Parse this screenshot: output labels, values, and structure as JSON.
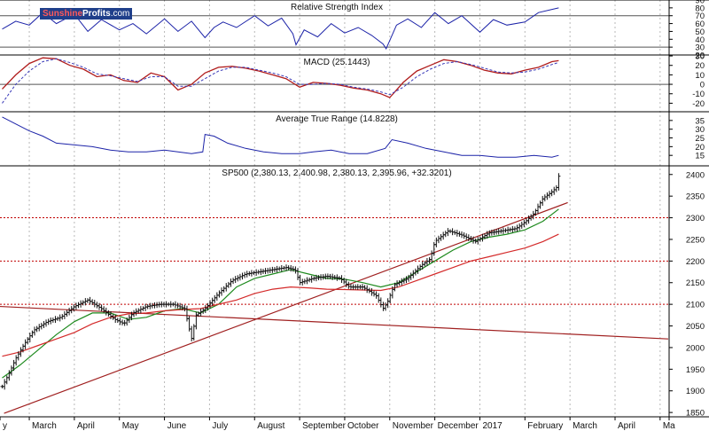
{
  "brand": {
    "part1": "Sunshine",
    "part2": "Profits",
    "part3": ".com"
  },
  "x_axis": {
    "months": [
      {
        "label": "y",
        "m": 1.35
      },
      {
        "label": "March",
        "m": 2
      },
      {
        "label": "April",
        "m": 3
      },
      {
        "label": "May",
        "m": 4
      },
      {
        "label": "June",
        "m": 5
      },
      {
        "label": "July",
        "m": 6
      },
      {
        "label": "August",
        "m": 7
      },
      {
        "label": "September",
        "m": 8
      },
      {
        "label": "October",
        "m": 9
      },
      {
        "label": "November",
        "m": 10
      },
      {
        "label": "December",
        "m": 11
      },
      {
        "label": "2017",
        "m": 12
      },
      {
        "label": "February",
        "m": 13
      },
      {
        "label": "March",
        "m": 14
      },
      {
        "label": "April",
        "m": 15
      },
      {
        "label": "Ma",
        "m": 16
      }
    ]
  },
  "chart_data": [
    {
      "type": "line",
      "title": "Relative Strength Index",
      "ylim": [
        20,
        90
      ],
      "yticks": [
        20,
        30,
        40,
        50,
        60,
        70,
        80,
        90
      ],
      "reference_lines": [
        30,
        70
      ],
      "x": [
        1.4,
        1.7,
        2.0,
        2.3,
        2.6,
        3.0,
        3.3,
        3.6,
        4.0,
        4.3,
        4.6,
        5.0,
        5.3,
        5.6,
        5.9,
        6.1,
        6.3,
        6.6,
        7.0,
        7.3,
        7.6,
        7.85,
        7.92,
        8.1,
        8.4,
        8.7,
        9.0,
        9.3,
        9.6,
        9.85,
        9.92,
        10.15,
        10.4,
        10.7,
        11.0,
        11.3,
        11.6,
        12.0,
        12.3,
        12.6,
        13.0,
        13.3,
        13.6,
        13.75
      ],
      "values": [
        53,
        63,
        58,
        74,
        60,
        72,
        50,
        65,
        52,
        60,
        47,
        66,
        50,
        63,
        42,
        55,
        62,
        55,
        70,
        57,
        67,
        47,
        33,
        52,
        43,
        60,
        48,
        55,
        45,
        34,
        28,
        58,
        66,
        55,
        74,
        60,
        70,
        49,
        65,
        58,
        62,
        74,
        78,
        80
      ],
      "color": "#1c23a8"
    },
    {
      "type": "line",
      "title": "MACD (25.1443)",
      "ylim": [
        -29,
        31
      ],
      "yticks": [
        -20,
        -10,
        0,
        10,
        20,
        30
      ],
      "reference_lines": [
        0
      ],
      "series": [
        {
          "name": "MACD",
          "color": "#b01c1c",
          "x": [
            1.4,
            1.7,
            2.0,
            2.3,
            2.6,
            2.9,
            3.2,
            3.5,
            3.8,
            4.1,
            4.4,
            4.7,
            5.0,
            5.3,
            5.6,
            5.9,
            6.2,
            6.5,
            6.8,
            7.1,
            7.4,
            7.7,
            8.0,
            8.3,
            8.6,
            8.9,
            9.2,
            9.5,
            9.8,
            10.0,
            10.3,
            10.6,
            10.9,
            11.2,
            11.5,
            11.8,
            12.1,
            12.4,
            12.7,
            13.0,
            13.3,
            13.6,
            13.75
          ],
          "values": [
            -5,
            10,
            22,
            28,
            27,
            20,
            16,
            8,
            10,
            4,
            2,
            12,
            8,
            -6,
            0,
            12,
            18,
            19,
            17,
            14,
            10,
            6,
            -3,
            2,
            1,
            -1,
            -4,
            -6,
            -10,
            -14,
            2,
            14,
            20,
            26,
            24,
            20,
            15,
            12,
            11,
            15,
            18,
            24,
            25
          ]
        },
        {
          "name": "Signal",
          "color": "#3a3ab8",
          "dashed": true,
          "x": [
            1.4,
            1.7,
            2.0,
            2.3,
            2.6,
            2.9,
            3.2,
            3.5,
            3.8,
            4.1,
            4.4,
            4.7,
            5.0,
            5.3,
            5.6,
            5.9,
            6.2,
            6.5,
            6.8,
            7.1,
            7.4,
            7.7,
            8.0,
            8.3,
            8.6,
            8.9,
            9.2,
            9.5,
            9.8,
            10.0,
            10.3,
            10.6,
            10.9,
            11.2,
            11.5,
            11.8,
            12.1,
            12.4,
            12.7,
            13.0,
            13.3,
            13.6,
            13.75
          ],
          "values": [
            -20,
            0,
            14,
            24,
            27,
            23,
            18,
            11,
            9,
            6,
            3,
            8,
            8,
            -2,
            -2,
            6,
            14,
            18,
            18,
            15,
            12,
            8,
            0,
            0,
            1,
            0,
            -3,
            -5,
            -8,
            -11,
            -3,
            8,
            16,
            22,
            24,
            21,
            17,
            13,
            12,
            13,
            16,
            21,
            23
          ]
        }
      ]
    },
    {
      "type": "line",
      "title": "Average True Range (14.8228)",
      "ylim": [
        9,
        40
      ],
      "yticks": [
        15,
        20,
        25,
        30,
        35
      ],
      "x": [
        1.4,
        1.7,
        2.0,
        2.3,
        2.6,
        3.0,
        3.4,
        3.8,
        4.2,
        4.6,
        5.0,
        5.3,
        5.6,
        5.85,
        5.9,
        6.1,
        6.4,
        6.8,
        7.2,
        7.6,
        8.0,
        8.3,
        8.7,
        9.1,
        9.5,
        9.9,
        10.05,
        10.4,
        10.8,
        11.2,
        11.6,
        12.0,
        12.4,
        12.8,
        13.2,
        13.6,
        13.75
      ],
      "values": [
        37,
        33,
        29,
        26,
        22,
        21,
        20,
        18,
        17,
        17,
        18,
        17,
        16,
        17,
        27,
        26,
        22,
        19,
        17,
        16,
        16,
        17,
        18,
        16,
        16,
        19,
        24,
        22,
        19,
        17,
        15,
        15,
        14,
        14,
        15,
        14,
        15
      ],
      "color": "#1c23a8"
    },
    {
      "type": "line",
      "title": "SP500 (2,380.13, 2,400.98, 2,380.13, 2,395.96, +32.3201)",
      "ylim": [
        1840,
        2420
      ],
      "yticks": [
        1850,
        1900,
        1950,
        2000,
        2050,
        2100,
        2150,
        2200,
        2250,
        2300,
        2350,
        2400
      ],
      "horizontal_levels": [
        2300,
        2200,
        2100
      ],
      "series": [
        {
          "name": "SP500",
          "color": "#111111",
          "x": [
            1.4,
            1.55,
            1.7,
            1.9,
            2.1,
            2.4,
            2.7,
            3.0,
            3.3,
            3.6,
            3.9,
            4.1,
            4.3,
            4.6,
            4.9,
            5.2,
            5.45,
            5.6,
            5.7,
            5.9,
            6.2,
            6.5,
            6.8,
            7.1,
            7.4,
            7.7,
            7.9,
            8.0,
            8.3,
            8.6,
            8.9,
            9.1,
            9.4,
            9.7,
            9.85,
            9.95,
            10.1,
            10.4,
            10.7,
            10.9,
            11.0,
            11.3,
            11.6,
            11.9,
            12.2,
            12.5,
            12.8,
            13.0,
            13.2,
            13.4,
            13.6,
            13.7,
            13.75
          ],
          "values": [
            1910,
            1940,
            1975,
            2010,
            2040,
            2060,
            2070,
            2095,
            2110,
            2090,
            2065,
            2055,
            2080,
            2095,
            2100,
            2100,
            2090,
            2020,
            2075,
            2090,
            2125,
            2155,
            2170,
            2175,
            2180,
            2185,
            2180,
            2150,
            2160,
            2165,
            2160,
            2140,
            2140,
            2120,
            2090,
            2105,
            2145,
            2160,
            2190,
            2205,
            2245,
            2270,
            2260,
            2245,
            2265,
            2270,
            2275,
            2290,
            2310,
            2345,
            2360,
            2370,
            2396
          ]
        },
        {
          "name": "Moving average 1",
          "color": "#1e8a1e",
          "x": [
            1.4,
            1.8,
            2.2,
            2.6,
            3.0,
            3.4,
            3.8,
            4.2,
            4.6,
            5.0,
            5.4,
            5.8,
            6.2,
            6.6,
            7.0,
            7.4,
            7.8,
            8.2,
            8.6,
            9.0,
            9.4,
            9.8,
            10.2,
            10.6,
            11.0,
            11.4,
            11.8,
            12.2,
            12.6,
            13.0,
            13.4,
            13.75
          ],
          "values": [
            1930,
            1960,
            1995,
            2030,
            2060,
            2080,
            2080,
            2065,
            2070,
            2085,
            2090,
            2080,
            2100,
            2140,
            2160,
            2170,
            2180,
            2170,
            2160,
            2158,
            2150,
            2140,
            2150,
            2175,
            2200,
            2225,
            2245,
            2255,
            2262,
            2272,
            2292,
            2320
          ]
        },
        {
          "name": "Moving average 2",
          "color": "#d42a2a",
          "x": [
            1.4,
            1.8,
            2.2,
            2.6,
            3.0,
            3.4,
            3.8,
            4.2,
            4.6,
            5.0,
            5.4,
            5.8,
            6.2,
            6.6,
            7.0,
            7.4,
            7.8,
            8.2,
            8.6,
            9.0,
            9.4,
            9.8,
            10.2,
            10.6,
            11.0,
            11.4,
            11.8,
            12.2,
            12.6,
            13.0,
            13.4,
            13.75
          ],
          "values": [
            1980,
            1990,
            2005,
            2020,
            2035,
            2055,
            2070,
            2078,
            2080,
            2085,
            2088,
            2090,
            2100,
            2110,
            2125,
            2135,
            2140,
            2138,
            2135,
            2134,
            2133,
            2132,
            2140,
            2155,
            2170,
            2185,
            2200,
            2210,
            2220,
            2230,
            2245,
            2262
          ]
        }
      ],
      "trendlines": [
        {
          "name": "rising trend line",
          "color": "#a02020",
          "x": [
            1.44,
            13.95
          ],
          "values": [
            1848,
            2335
          ]
        },
        {
          "name": "declining trend line",
          "color": "#a02020",
          "x": [
            1.35,
            16.18
          ],
          "values": [
            2095,
            2020
          ]
        }
      ]
    }
  ]
}
